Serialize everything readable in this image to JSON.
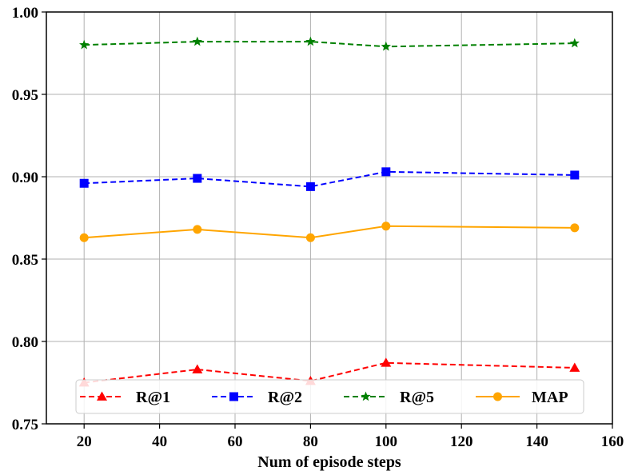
{
  "chart_data": {
    "type": "line",
    "title": "",
    "xlabel": "Num of episode steps",
    "ylabel": "",
    "xlim": [
      10,
      160
    ],
    "ylim": [
      0.75,
      1.0
    ],
    "x_ticks": [
      20,
      40,
      60,
      80,
      100,
      120,
      140,
      160
    ],
    "y_ticks": [
      0.75,
      0.8,
      0.85,
      0.9,
      0.95,
      1.0
    ],
    "y_tick_labels": [
      "0.75",
      "0.80",
      "0.85",
      "0.90",
      "0.95",
      "1.00"
    ],
    "grid": true,
    "legend_position": "bottom",
    "x": [
      20,
      50,
      80,
      100,
      150
    ],
    "series": [
      {
        "name": "R@1",
        "values": [
          0.775,
          0.783,
          0.776,
          0.787,
          0.784
        ],
        "color": "#ff0000",
        "dash": "dashed",
        "marker": "triangle"
      },
      {
        "name": "R@2",
        "values": [
          0.896,
          0.899,
          0.894,
          0.903,
          0.901
        ],
        "color": "#0000ff",
        "dash": "dashed",
        "marker": "square"
      },
      {
        "name": "R@5",
        "values": [
          0.98,
          0.982,
          0.982,
          0.979,
          0.981
        ],
        "color": "#008000",
        "dash": "dashed",
        "marker": "star"
      },
      {
        "name": "MAP",
        "values": [
          0.863,
          0.868,
          0.863,
          0.87,
          0.869
        ],
        "color": "#ffa500",
        "dash": "solid",
        "marker": "circle"
      }
    ]
  }
}
